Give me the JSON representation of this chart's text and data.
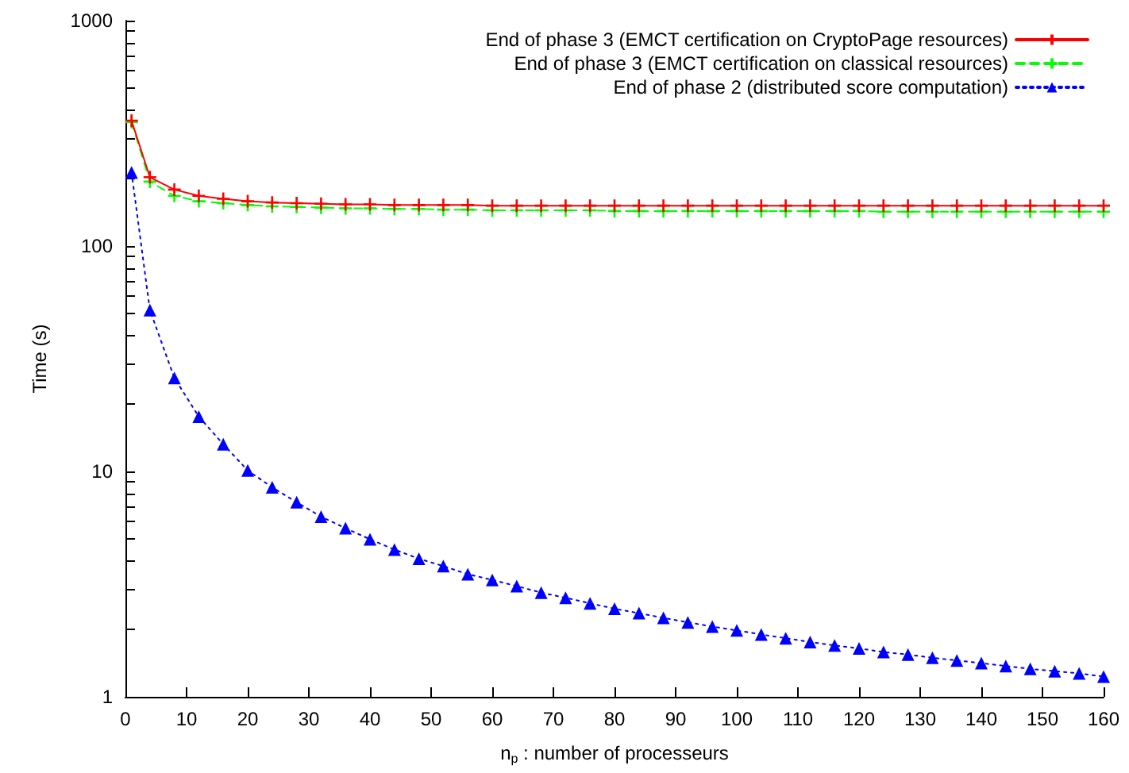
{
  "chart_data": {
    "type": "line",
    "xlabel": "n$_{p}$ : number of processeurs",
    "ylabel": "Time (s)",
    "x": [
      1,
      4,
      8,
      12,
      16,
      20,
      24,
      28,
      32,
      36,
      40,
      44,
      48,
      52,
      56,
      60,
      64,
      68,
      72,
      76,
      80,
      84,
      88,
      92,
      96,
      100,
      104,
      108,
      112,
      116,
      120,
      124,
      128,
      132,
      136,
      140,
      144,
      148,
      152,
      156,
      160
    ],
    "series": [
      {
        "name": "End of phase 3 (EMCT certification on CryptoPage resources)",
        "color": "#ff0000",
        "marker": "cross",
        "line_style": "solid",
        "values": [
          360,
          202,
          178,
          167,
          162,
          158,
          156,
          155,
          154,
          153,
          153,
          152,
          152,
          152,
          152,
          151,
          151,
          151,
          151,
          151,
          151,
          151,
          151,
          151,
          151,
          151,
          151,
          151,
          151,
          151,
          151,
          151,
          151,
          151,
          151,
          151,
          151,
          151,
          151,
          151,
          151
        ]
      },
      {
        "name": "End of phase 3 (EMCT certification on classical resources)",
        "color": "#00ff00",
        "marker": "cross",
        "line_style": "dashed",
        "values": [
          355,
          193,
          167,
          158,
          155,
          152,
          150,
          149,
          148,
          147,
          147,
          146,
          146,
          145,
          145,
          144,
          144,
          144,
          144,
          144,
          143,
          143,
          143,
          143,
          143,
          143,
          143,
          143,
          143,
          143,
          143,
          142,
          142,
          142,
          142,
          142,
          142,
          142,
          142,
          142,
          142
        ]
      },
      {
        "name": "End of phase 2 (distributed score computation)",
        "color": "#0000ff",
        "marker": "triangle",
        "line_style": "dotted",
        "values": [
          212,
          52,
          26,
          17.5,
          13.2,
          10.1,
          8.5,
          7.3,
          6.3,
          5.6,
          5.0,
          4.5,
          4.1,
          3.8,
          3.5,
          3.3,
          3.1,
          2.9,
          2.75,
          2.6,
          2.46,
          2.35,
          2.24,
          2.14,
          2.05,
          1.97,
          1.89,
          1.82,
          1.75,
          1.69,
          1.64,
          1.58,
          1.54,
          1.49,
          1.45,
          1.41,
          1.37,
          1.33,
          1.3,
          1.27,
          1.23
        ]
      }
    ],
    "log": "y",
    "xlim": [
      0,
      160
    ],
    "xticks": [
      0,
      10,
      20,
      30,
      40,
      50,
      60,
      70,
      80,
      90,
      100,
      110,
      120,
      130,
      140,
      150,
      160
    ],
    "ylim": [
      1,
      1000
    ],
    "yticks": [
      1,
      {
        "value": 2,
        "label": null
      },
      {
        "value": 3,
        "label": null
      },
      {
        "value": 4,
        "label": null
      },
      {
        "value": 5,
        "label": null
      },
      {
        "value": 6,
        "label": null
      },
      {
        "value": 7,
        "label": null
      },
      {
        "value": 8,
        "label": null
      },
      {
        "value": 9,
        "label": null
      },
      10,
      {
        "value": 20,
        "label": null
      },
      {
        "value": 30,
        "label": null
      },
      {
        "value": 40,
        "label": null
      },
      {
        "value": 50,
        "label": null
      },
      {
        "value": 60,
        "label": null
      },
      {
        "value": 70,
        "label": null
      },
      {
        "value": 80,
        "label": null
      },
      {
        "value": 90,
        "label": null
      },
      100,
      {
        "value": 200,
        "label": null
      },
      {
        "value": 300,
        "label": null
      },
      {
        "value": 400,
        "label": null
      },
      {
        "value": 500,
        "label": null
      },
      {
        "value": 600,
        "label": null
      },
      {
        "value": 700,
        "label": null
      },
      {
        "value": 800,
        "label": null
      },
      {
        "value": 900,
        "label": null
      },
      1000
    ],
    "grid": false,
    "legend": "top right"
  }
}
